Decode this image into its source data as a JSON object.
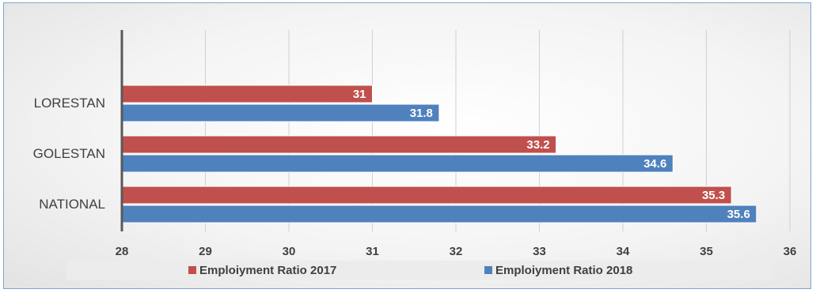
{
  "chart_data": {
    "type": "bar",
    "orientation": "horizontal",
    "title": "",
    "xlabel": "",
    "ylabel": "",
    "categories": [
      "LORESTAN",
      "GOLESTAN",
      "NATIONAL"
    ],
    "series": [
      {
        "name": "Emploiyment Ratio 2017",
        "values": [
          31,
          33.2,
          35.3
        ],
        "color": "#c0504d"
      },
      {
        "name": "Emploiyment Ratio 2018",
        "values": [
          31.8,
          34.6,
          35.6
        ],
        "color": "#4f81bd"
      }
    ],
    "xlim": [
      28,
      36
    ],
    "xticks": [
      "28",
      "29",
      "30",
      "31",
      "32",
      "33",
      "34",
      "35",
      "36"
    ],
    "data_labels": [
      [
        "31",
        "33.2",
        "35.3"
      ],
      [
        "31.8",
        "34.6",
        "35.6"
      ]
    ],
    "grid": "vertical",
    "legend_position": "bottom"
  }
}
